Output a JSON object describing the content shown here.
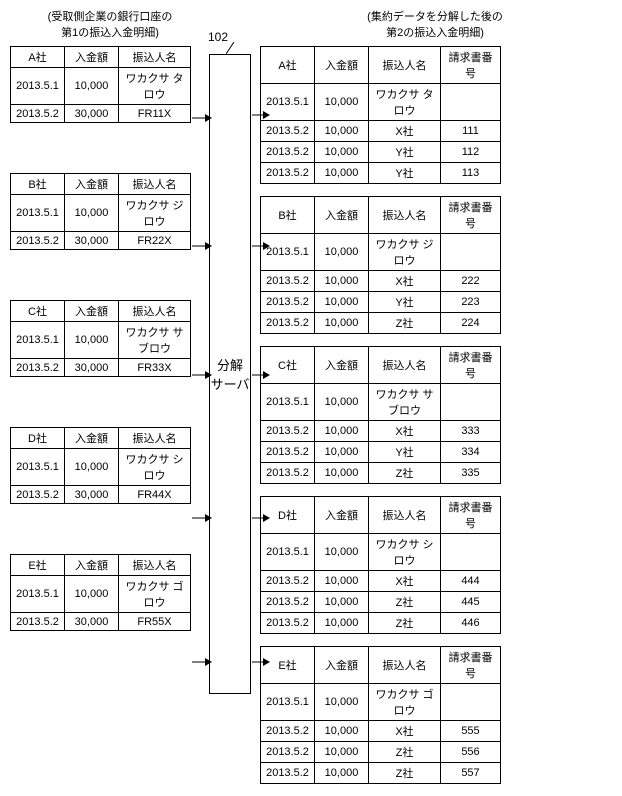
{
  "captions": {
    "left": "(受取側企業の銀行口座の\n第1の振込入金明細)",
    "right": "(集約データを分解した後の\n第2の振込入金明細)"
  },
  "server": {
    "label": "分解\nサーバ",
    "number": "102",
    "lead": "┌"
  },
  "left_tables": [
    {
      "headers": [
        "A社",
        "入金額",
        "振込人名"
      ],
      "rows": [
        [
          "2013.5.1",
          "10,000",
          "ワカクサ タロウ"
        ],
        [
          "2013.5.2",
          "30,000",
          "FR11X"
        ]
      ]
    },
    {
      "headers": [
        "B社",
        "入金額",
        "振込人名"
      ],
      "rows": [
        [
          "2013.5.1",
          "10,000",
          "ワカクサ ジロウ"
        ],
        [
          "2013.5.2",
          "30,000",
          "FR22X"
        ]
      ]
    },
    {
      "headers": [
        "C社",
        "入金額",
        "振込人名"
      ],
      "rows": [
        [
          "2013.5.1",
          "10,000",
          "ワカクサ サブロウ"
        ],
        [
          "2013.5.2",
          "30,000",
          "FR33X"
        ]
      ]
    },
    {
      "headers": [
        "D社",
        "入金額",
        "振込人名"
      ],
      "rows": [
        [
          "2013.5.1",
          "10,000",
          "ワカクサ シロウ"
        ],
        [
          "2013.5.2",
          "30,000",
          "FR44X"
        ]
      ]
    },
    {
      "headers": [
        "E社",
        "入金額",
        "振込人名"
      ],
      "rows": [
        [
          "2013.5.1",
          "10,000",
          "ワカクサ ゴロウ"
        ],
        [
          "2013.5.2",
          "30,000",
          "FR55X"
        ]
      ]
    }
  ],
  "right_tables": [
    {
      "headers": [
        "A社",
        "入金額",
        "振込人名",
        "請求書番号"
      ],
      "rows": [
        [
          "2013.5.1",
          "10,000",
          "ワカクサ タロウ",
          ""
        ],
        [
          "2013.5.2",
          "10,000",
          "X社",
          "111"
        ],
        [
          "2013.5.2",
          "10,000",
          "Y社",
          "112"
        ],
        [
          "2013.5.2",
          "10,000",
          "Y社",
          "113"
        ]
      ]
    },
    {
      "headers": [
        "B社",
        "入金額",
        "振込人名",
        "請求書番号"
      ],
      "rows": [
        [
          "2013.5.1",
          "10,000",
          "ワカクサ ジロウ",
          ""
        ],
        [
          "2013.5.2",
          "10,000",
          "X社",
          "222"
        ],
        [
          "2013.5.2",
          "10,000",
          "Y社",
          "223"
        ],
        [
          "2013.5.2",
          "10,000",
          "Z社",
          "224"
        ]
      ]
    },
    {
      "headers": [
        "C社",
        "入金額",
        "振込人名",
        "請求書番号"
      ],
      "rows": [
        [
          "2013.5.1",
          "10,000",
          "ワカクサ サブロウ",
          ""
        ],
        [
          "2013.5.2",
          "10,000",
          "X社",
          "333"
        ],
        [
          "2013.5.2",
          "10,000",
          "Y社",
          "334"
        ],
        [
          "2013.5.2",
          "10,000",
          "Z社",
          "335"
        ]
      ]
    },
    {
      "headers": [
        "D社",
        "入金額",
        "振込人名",
        "請求書番号"
      ],
      "rows": [
        [
          "2013.5.1",
          "10,000",
          "ワカクサ シロウ",
          ""
        ],
        [
          "2013.5.2",
          "10,000",
          "X社",
          "444"
        ],
        [
          "2013.5.2",
          "10,000",
          "Z社",
          "445"
        ],
        [
          "2013.5.2",
          "10,000",
          "Z社",
          "446"
        ]
      ]
    },
    {
      "headers": [
        "E社",
        "入金額",
        "振込人名",
        "請求書番号"
      ],
      "rows": [
        [
          "2013.5.1",
          "10,000",
          "ワカクサ ゴロウ",
          ""
        ],
        [
          "2013.5.2",
          "10,000",
          "X社",
          "555"
        ],
        [
          "2013.5.2",
          "10,000",
          "Z社",
          "556"
        ],
        [
          "2013.5.2",
          "10,000",
          "Z社",
          "557"
        ]
      ]
    }
  ],
  "styling": {
    "border_color": "#000000",
    "background_color": "#ffffff",
    "font_size_table": 11,
    "font_size_caption": 11,
    "font_size_server": 13,
    "left_col_widths": [
      54,
      54,
      72
    ],
    "right_col_widths": [
      54,
      54,
      72,
      60
    ],
    "arrow_color": "#000000"
  },
  "arrows": {
    "left_y": [
      118,
      246,
      375,
      518,
      662
    ],
    "right_y": [
      115,
      246,
      375,
      518,
      662
    ]
  }
}
